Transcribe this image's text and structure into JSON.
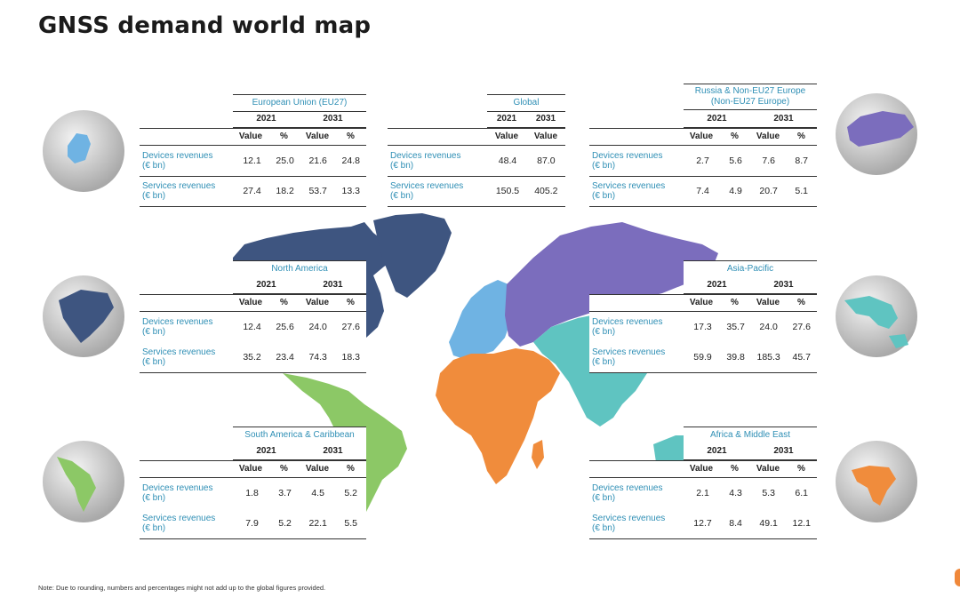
{
  "title": "GNSS demand world map",
  "note": "Note: Due to rounding, numbers and percentages might not add up to the global figures provided.",
  "columns": {
    "value": "Value",
    "pct": "%",
    "year1": "2021",
    "year2": "2031"
  },
  "row_labels": {
    "devices_1": "Devices revenues",
    "devices_2": "(€ bn)",
    "services_1": "Services revenues",
    "services_2": "(€ bn)"
  },
  "regions": {
    "eu": {
      "name": "European Union (EU27)",
      "devices": [
        "12.1",
        "25.0",
        "21.6",
        "24.8"
      ],
      "services": [
        "27.4",
        "18.2",
        "53.7",
        "13.3"
      ]
    },
    "global": {
      "name": "Global",
      "devices": [
        "48.4",
        "87.0"
      ],
      "services": [
        "150.5",
        "405.2"
      ]
    },
    "russia": {
      "name_line1": "Russia & Non-EU27 Europe",
      "name_line2": "(Non-EU27 Europe)",
      "devices": [
        "2.7",
        "5.6",
        "7.6",
        "8.7"
      ],
      "services": [
        "7.4",
        "4.9",
        "20.7",
        "5.1"
      ]
    },
    "na": {
      "name": "North America",
      "devices": [
        "12.4",
        "25.6",
        "24.0",
        "27.6"
      ],
      "services": [
        "35.2",
        "23.4",
        "74.3",
        "18.3"
      ]
    },
    "ap": {
      "name": "Asia-Pacific",
      "devices": [
        "17.3",
        "35.7",
        "24.0",
        "27.6"
      ],
      "services": [
        "59.9",
        "39.8",
        "185.3",
        "45.7"
      ]
    },
    "sa": {
      "name": "South America & Caribbean",
      "devices": [
        "1.8",
        "3.7",
        "4.5",
        "5.2"
      ],
      "services": [
        "7.9",
        "5.2",
        "22.1",
        "5.5"
      ]
    },
    "ame": {
      "name": "Africa & Middle East",
      "devices": [
        "2.1",
        "4.3",
        "5.3",
        "6.1"
      ],
      "services": [
        "12.7",
        "8.4",
        "49.1",
        "12.1"
      ]
    }
  },
  "colors": {
    "north_america": "#3e5580",
    "europe": "#6fb3e3",
    "russia_asia": "#7b6dbd",
    "asia_pacific": "#5fc4c1",
    "africa_me": "#f08c3c",
    "south_america": "#8cc866",
    "label_blue": "#2f8fb5"
  }
}
